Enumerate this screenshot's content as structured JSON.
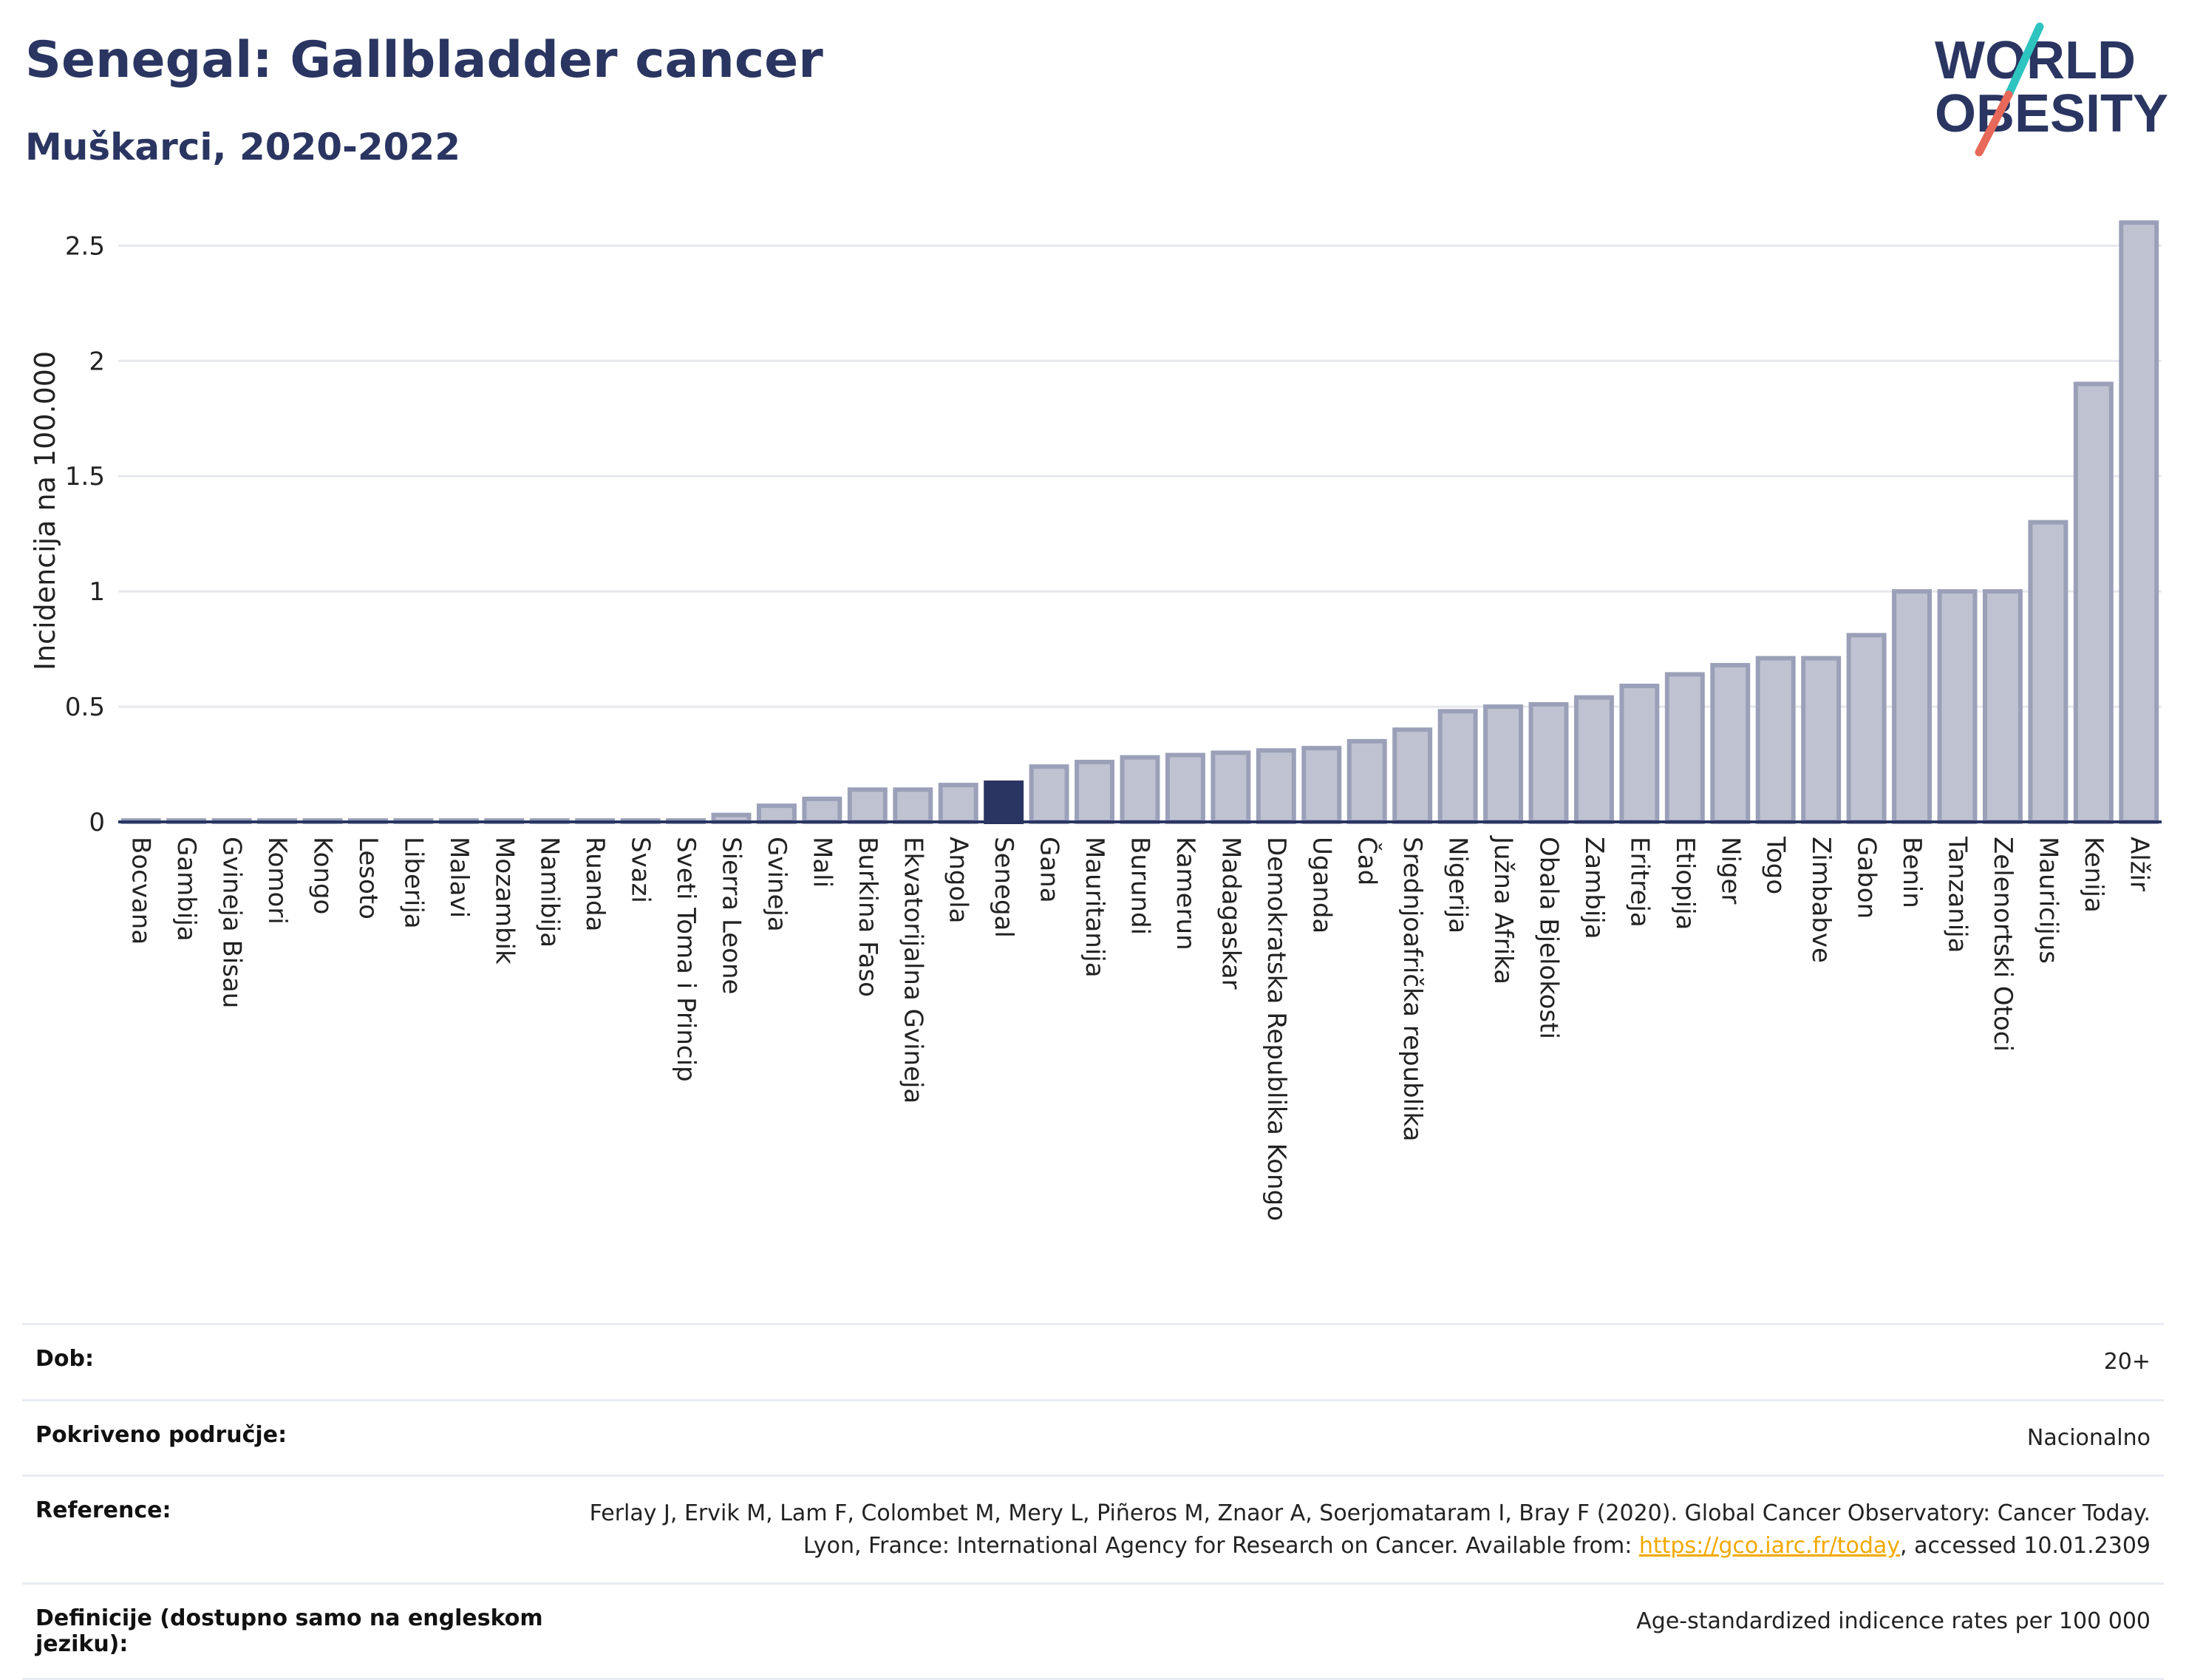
{
  "header": {
    "title": "Senegal: Gallbladder cancer",
    "subtitle": "Muškarci, 2020-2022"
  },
  "logo": {
    "line1": "WORLD",
    "line2": "OBESITY",
    "colors": {
      "text": "#2a3561",
      "slash_teal": "#2ec4c0",
      "slash_red": "#e8695a"
    }
  },
  "colors": {
    "bar_fill": "#bfc3d1",
    "bar_stroke": "#9aa0b8",
    "highlight": "#2a3561",
    "grid": "#e6e8ee",
    "axis": "#2a3561"
  },
  "chart_data": {
    "type": "bar",
    "ylabel": "Incidencija na 100.000",
    "ylim": [
      0,
      2.7
    ],
    "yticks": [
      0,
      0.5,
      1,
      1.5,
      2,
      2.5
    ],
    "ytick_labels": [
      "0",
      "0.5",
      "1",
      "1.5",
      "2",
      "2.5"
    ],
    "grid": true,
    "highlight": "Senegal",
    "categories": [
      "Bocvana",
      "Gambija",
      "Gvineja Bisau",
      "Komori",
      "Kongo",
      "Lesoto",
      "Liberija",
      "Malavi",
      "Mozambik",
      "Namibija",
      "Ruanda",
      "Svazi",
      "Sveti Toma i Princip",
      "Sierra Leone",
      "Gvineja",
      "Mali",
      "Burkina Faso",
      "Ekvatorijalna Gvineja",
      "Angola",
      "Senegal",
      "Gana",
      "Mauritanija",
      "Burundi",
      "Kamerun",
      "Madagaskar",
      "Demokratska Republika Kongo",
      "Uganda",
      "Čad",
      "Srednjoafrička republika",
      "Nigerija",
      "Južna Afrika",
      "Obala Bjelokosti",
      "Zambija",
      "Eritreja",
      "Etiopija",
      "Niger",
      "Togo",
      "Zimbabve",
      "Gabon",
      "Benin",
      "Tanzanija",
      "Zelenortski Otoci",
      "Mauricijus",
      "Kenija",
      "Alžir"
    ],
    "values": [
      0,
      0,
      0,
      0,
      0,
      0,
      0,
      0,
      0,
      0,
      0,
      0,
      0,
      0.03,
      0.07,
      0.1,
      0.14,
      0.14,
      0.16,
      0.17,
      0.24,
      0.26,
      0.28,
      0.29,
      0.3,
      0.31,
      0.32,
      0.35,
      0.4,
      0.48,
      0.5,
      0.51,
      0.54,
      0.59,
      0.64,
      0.68,
      0.71,
      0.71,
      0.81,
      1.0,
      1.0,
      1.0,
      1.3,
      1.9,
      2.6
    ]
  },
  "info": {
    "rows": [
      {
        "label": "Dob:",
        "value": "20+"
      },
      {
        "label": "Pokriveno područje:",
        "value": "Nacionalno"
      },
      {
        "label": "Reference:",
        "value_pre": "Ferlay J, Ervik M, Lam F, Colombet M, Mery L, Piñeros M, Znaor A, Soerjomataram I, Bray F (2020). Global Cancer Observatory: Cancer Today. Lyon, France: International Agency for Research on Cancer. Available from: ",
        "link": "https://gco.iarc.fr/today",
        "value_post": ", accessed 10.01.2309"
      },
      {
        "label": "Definicije (dostupno samo na engleskom jeziku):",
        "value": "Age-standardized indicence rates per 100 000"
      }
    ]
  }
}
